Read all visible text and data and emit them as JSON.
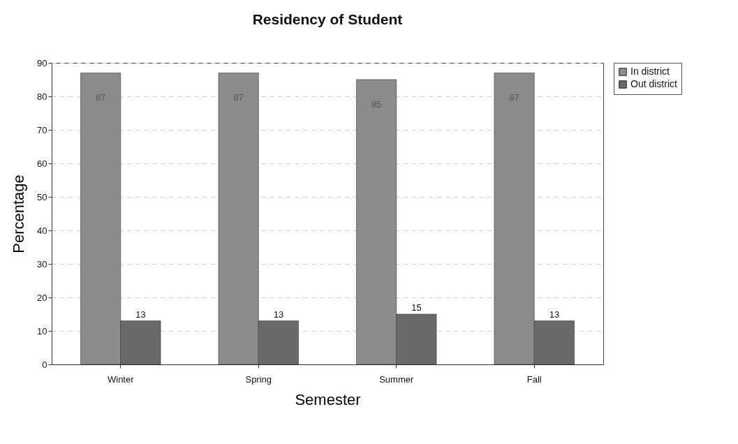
{
  "chart_data": {
    "type": "bar",
    "title": "Residency of  Student",
    "xlabel": "Semester",
    "ylabel": "Percentage",
    "categories": [
      "Winter",
      "Spring",
      "Summer",
      "Fall"
    ],
    "series": [
      {
        "name": "In district",
        "color": "#8c8c8c",
        "values": [
          87,
          87,
          85,
          87
        ]
      },
      {
        "name": "Out district",
        "color": "#6a6a6a",
        "values": [
          13,
          13,
          15,
          13
        ]
      }
    ],
    "ylim": [
      0,
      90
    ],
    "yticks": [
      0,
      10,
      20,
      30,
      40,
      50,
      60,
      70,
      80,
      90
    ],
    "grid": "y",
    "legend": "right",
    "data_labels": true
  }
}
